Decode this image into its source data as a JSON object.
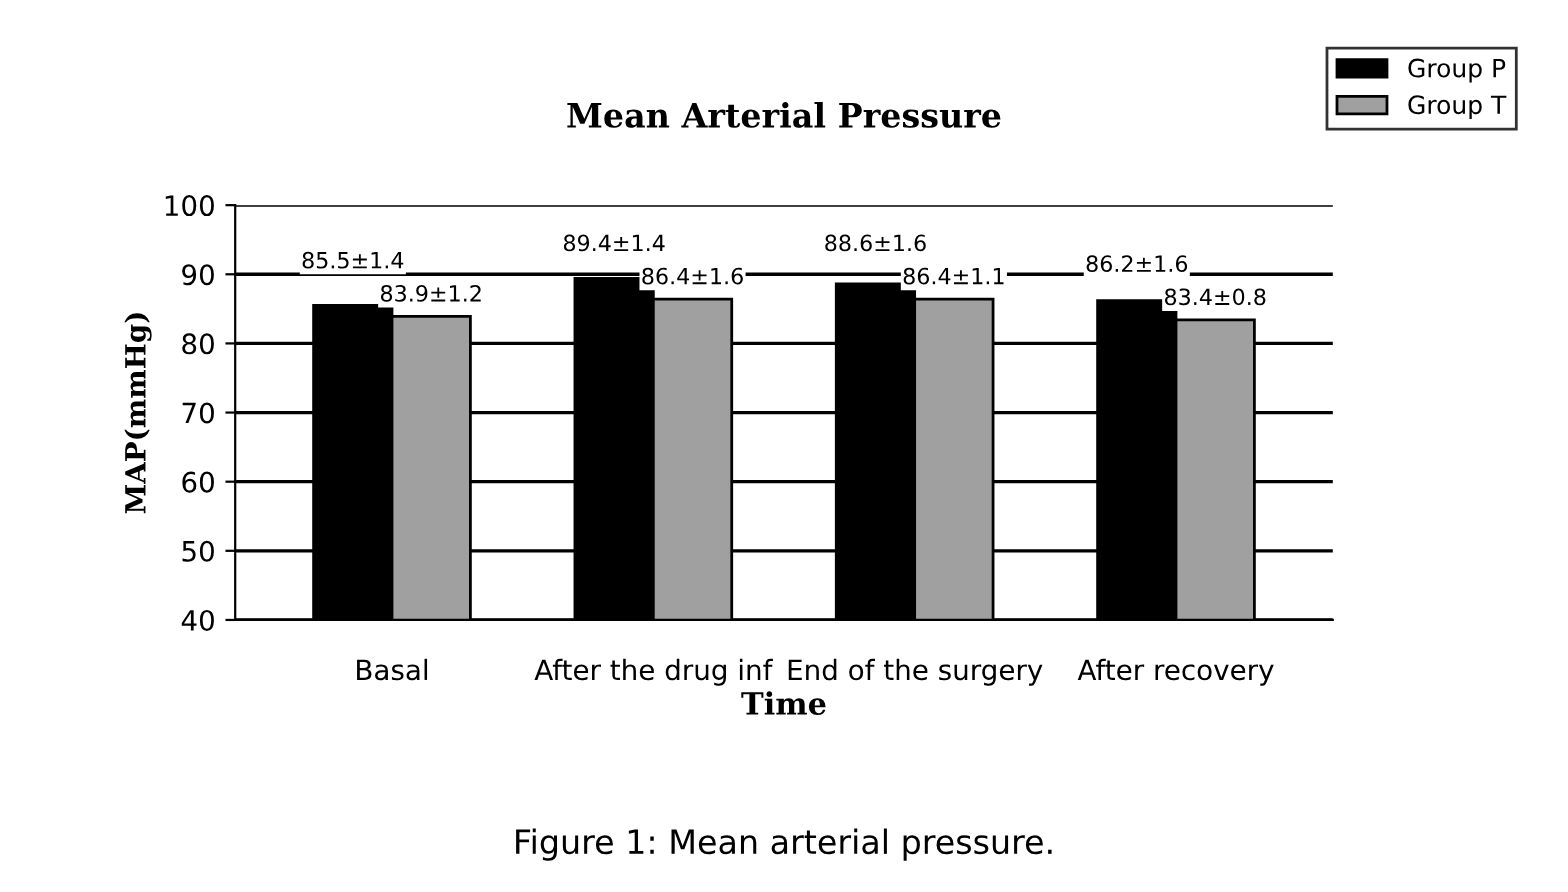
{
  "chart_data": {
    "type": "bar",
    "title": "Mean Arterial Pressure",
    "xlabel": "Time",
    "ylabel": "MAP(mmHg)",
    "categories": [
      "Basal",
      "After the drug inf",
      "End of the surgery",
      "After recovery"
    ],
    "series": [
      {
        "name": "Group P",
        "color": "#000000",
        "values": [
          85.5,
          89.4,
          88.6,
          86.2
        ],
        "value_labels": [
          "85.5±1.4",
          "89.4±1.4",
          "88.6±1.6",
          "86.2±1.6"
        ]
      },
      {
        "name": "Group T",
        "color": "#a0a0a0",
        "values": [
          83.9,
          86.4,
          86.4,
          83.4
        ],
        "value_labels": [
          "83.9±1.2",
          "86.4±1.6",
          "86.4±1.1",
          "83.4±0.8"
        ]
      }
    ],
    "ylim": [
      40,
      100
    ],
    "yticks": [
      40,
      50,
      60,
      70,
      80,
      90,
      100
    ],
    "grid": "y",
    "legend": "top right",
    "annotations": [
      "Figure 1: Mean arterial pressure."
    ]
  }
}
